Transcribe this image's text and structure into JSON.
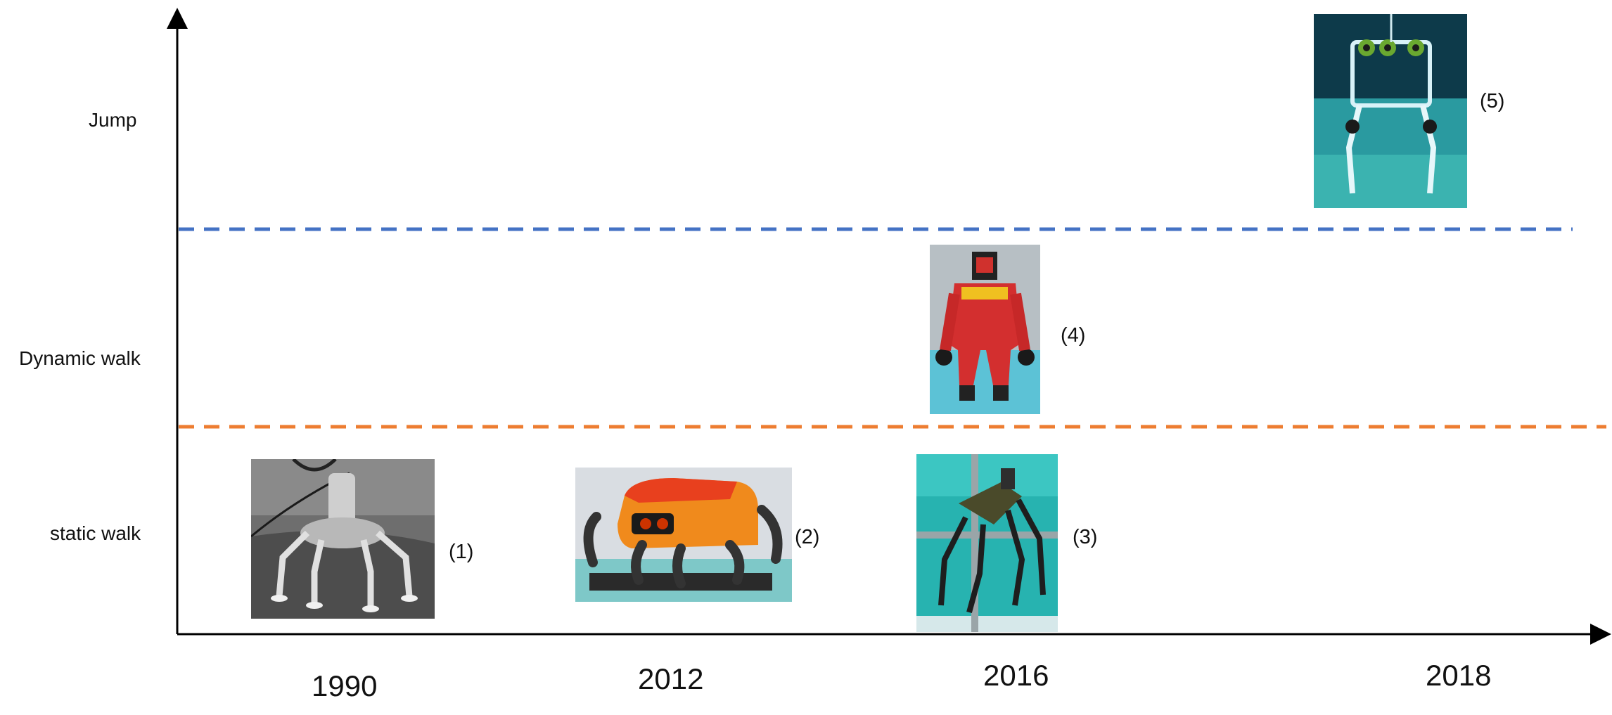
{
  "levels": [
    "Jump",
    "Dynamic walk",
    "static walk"
  ],
  "years": [
    "1990",
    "2012",
    "2016",
    "2018"
  ],
  "robots": [
    {
      "tag": "(1)",
      "year": "1990",
      "level": "static walk",
      "photo": "gray-hexapod-robot"
    },
    {
      "tag": "(2)",
      "year": "2012",
      "level": "static walk",
      "photo": "orange-crab-robot"
    },
    {
      "tag": "(3)",
      "year": "2016",
      "level": "static walk",
      "photo": "legged-robot-in-water-tank"
    },
    {
      "tag": "(4)",
      "year": "2016",
      "level": "Dynamic walk",
      "photo": "red-humanoid-robot-in-pool"
    },
    {
      "tag": "(5)",
      "year": "2018",
      "level": "Jump",
      "photo": "underwater-jumping-robot"
    }
  ],
  "colors": {
    "axis": "#000000",
    "jump_divider": "#4472c4",
    "walk_divider": "#ed7d31"
  }
}
